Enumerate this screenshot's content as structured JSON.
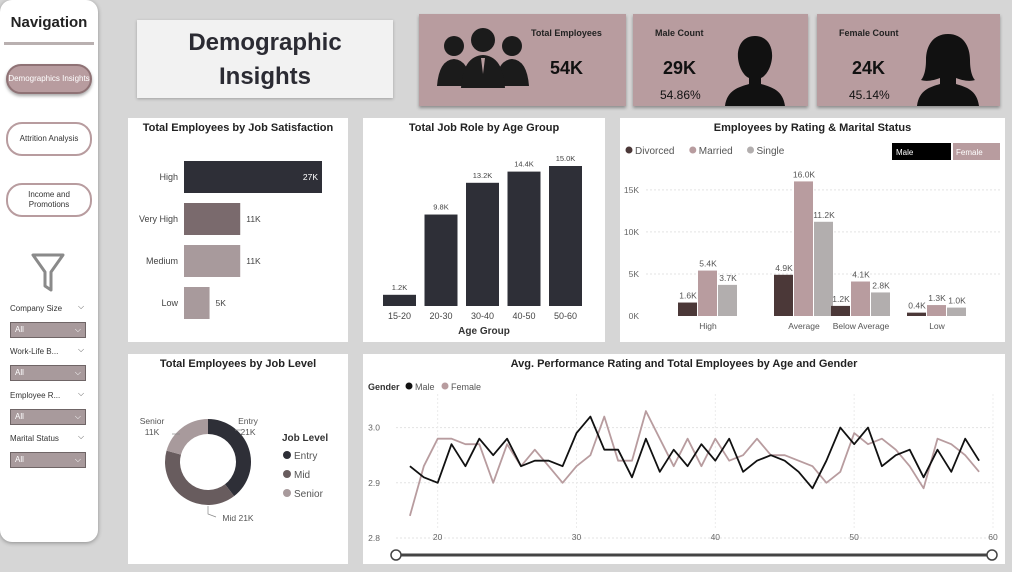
{
  "nav": {
    "title": "Navigation",
    "buttons": [
      "Demographics Insights",
      "Attrition Analysis",
      "Income and Promotions"
    ],
    "slicers": [
      {
        "label": "Company Size",
        "value": "All"
      },
      {
        "label": "Work-Life B...",
        "value": "All"
      },
      {
        "label": "Employee R...",
        "value": "All"
      },
      {
        "label": "Marital Status",
        "value": "All"
      }
    ]
  },
  "header": {
    "title_line1": "Demographic",
    "title_line2": "Insights"
  },
  "kpis": {
    "total": {
      "label": "Total Employees",
      "value": "54K"
    },
    "male": {
      "label": "Male Count",
      "value": "29K",
      "pct": "54.86%"
    },
    "female": {
      "label": "Female Count",
      "value": "24K",
      "pct": "45.14%"
    }
  },
  "colors": {
    "dark": "#2e2f37",
    "mauve": "#b89c9f",
    "gray": "#b2aeae",
    "brown": "#4b3838",
    "panel_bg": "#d6d6d6"
  },
  "chart_data": [
    {
      "type": "bar",
      "orientation": "horizontal",
      "title": "Total Employees by Job Satisfaction",
      "categories": [
        "High",
        "Very High",
        "Medium",
        "Low"
      ],
      "values": [
        27,
        11,
        11,
        5
      ],
      "labels": [
        "27K",
        "11K",
        "11K",
        "5K"
      ]
    },
    {
      "type": "bar",
      "title": "Total Job Role by Age Group",
      "xlabel": "Age Group",
      "categories": [
        "15-20",
        "20-30",
        "30-40",
        "40-50",
        "50-60"
      ],
      "values": [
        1.2,
        9.8,
        13.2,
        14.4,
        15.0
      ],
      "labels": [
        "1.2K",
        "9.8K",
        "13.2K",
        "14.4K",
        "15.0K"
      ]
    },
    {
      "type": "bar",
      "title": "Employees by Rating & Marital Status",
      "legend": [
        "Divorced",
        "Married",
        "Single"
      ],
      "gender_legend": [
        "Male",
        "Female"
      ],
      "categories": [
        "High",
        "Average",
        "Below Average",
        "Low"
      ],
      "yticks": [
        "0K",
        "5K",
        "10K",
        "15K"
      ],
      "ylim": [
        0,
        17
      ],
      "series": [
        {
          "name": "Divorced",
          "values": [
            1.6,
            4.9,
            1.2,
            0.4
          ],
          "labels": [
            "1.6K",
            "4.9K",
            "1.2K",
            "0.4K"
          ]
        },
        {
          "name": "Married",
          "values": [
            5.4,
            16.0,
            4.1,
            1.3
          ],
          "labels": [
            "5.4K",
            "16.0K",
            "4.1K",
            "1.3K"
          ]
        },
        {
          "name": "Single",
          "values": [
            3.7,
            11.2,
            2.8,
            1.0
          ],
          "labels": [
            "3.7K",
            "11.2K",
            "2.8K",
            "1.0K"
          ]
        }
      ]
    },
    {
      "type": "pie",
      "title": "Total Employees by Job Level",
      "legend_title": "Job Level",
      "categories": [
        "Entry",
        "Mid",
        "Senior"
      ],
      "values": [
        21,
        21,
        11
      ],
      "labels": [
        "Entry 21K",
        "Mid 21K",
        "Senior 11K"
      ]
    },
    {
      "type": "line",
      "title": "Avg. Performance Rating and Total Employees by Age and Gender",
      "legend_title": "Gender",
      "xlim": [
        17,
        60
      ],
      "ylim": [
        2.78,
        3.07
      ],
      "xticks": [
        "20",
        "30",
        "40",
        "50",
        "60"
      ],
      "yticks": [
        "2.8",
        "2.9",
        "3.0"
      ],
      "x": [
        18,
        19,
        20,
        21,
        22,
        23,
        24,
        25,
        26,
        27,
        28,
        29,
        30,
        31,
        32,
        33,
        34,
        35,
        36,
        37,
        38,
        39,
        40,
        41,
        42,
        43,
        44,
        45,
        46,
        47,
        48,
        49,
        50,
        51,
        52,
        53,
        54,
        55,
        56,
        57,
        58,
        59
      ],
      "series": [
        {
          "name": "Male",
          "values": [
            2.93,
            2.91,
            2.9,
            2.97,
            2.93,
            2.98,
            2.95,
            2.98,
            2.93,
            2.94,
            2.94,
            2.93,
            2.99,
            3.02,
            2.96,
            2.96,
            2.91,
            2.98,
            2.92,
            2.96,
            2.93,
            2.97,
            2.94,
            2.98,
            2.92,
            2.94,
            2.95,
            2.94,
            2.92,
            2.89,
            2.94,
            3.0,
            2.97,
            3.0,
            2.93,
            2.95,
            2.96,
            2.91,
            2.96,
            2.92,
            2.98,
            2.94
          ]
        },
        {
          "name": "Female",
          "values": [
            2.84,
            2.93,
            2.98,
            2.98,
            2.97,
            2.97,
            2.9,
            2.97,
            2.93,
            2.96,
            2.93,
            2.9,
            2.93,
            2.95,
            3.02,
            2.94,
            2.94,
            3.03,
            2.98,
            2.93,
            2.98,
            2.93,
            2.98,
            2.94,
            2.95,
            2.98,
            2.95,
            2.95,
            2.94,
            2.93,
            2.9,
            2.92,
            2.99,
            2.97,
            2.98,
            2.96,
            2.93,
            2.89,
            2.98,
            2.97,
            2.95,
            2.92
          ]
        }
      ]
    }
  ]
}
